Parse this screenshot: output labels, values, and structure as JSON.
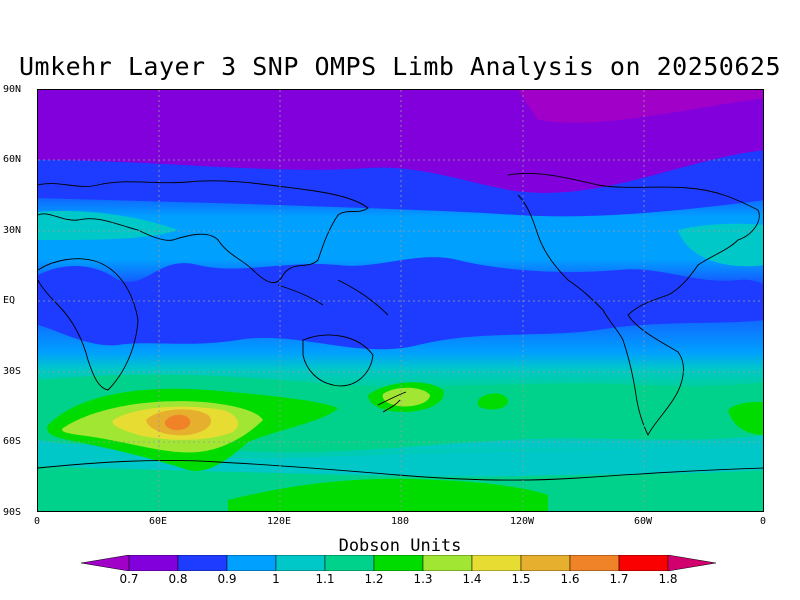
{
  "title": "Umkehr Layer 3 SNP OMPS Limb Analysis on 20250625",
  "y_ticks": [
    "90N",
    "60N",
    "30N",
    "EQ",
    "30S",
    "60S",
    "90S"
  ],
  "x_ticks": [
    "0",
    "60E",
    "120E",
    "180",
    "120W",
    "60W",
    "0"
  ],
  "colorbar": {
    "title": "Dobson Units",
    "labels": [
      "0.7",
      "0.8",
      "0.9",
      "1",
      "1.1",
      "1.2",
      "1.3",
      "1.4",
      "1.5",
      "1.6",
      "1.7",
      "1.8"
    ],
    "colors": [
      "#a000c8",
      "#8200dc",
      "#1e3cff",
      "#00a0ff",
      "#00c8c8",
      "#00d28c",
      "#00dc00",
      "#a0e632",
      "#e6dc32",
      "#e6af2d",
      "#f08228",
      "#fa0000",
      "#d2006e"
    ]
  },
  "map": {
    "projection": "cylindrical equidistant",
    "lon_range": [
      0,
      360
    ],
    "lat_range": [
      -90,
      90
    ],
    "grid": "dashed gray at 60° lon / 30° lat",
    "coastlines": true
  }
}
